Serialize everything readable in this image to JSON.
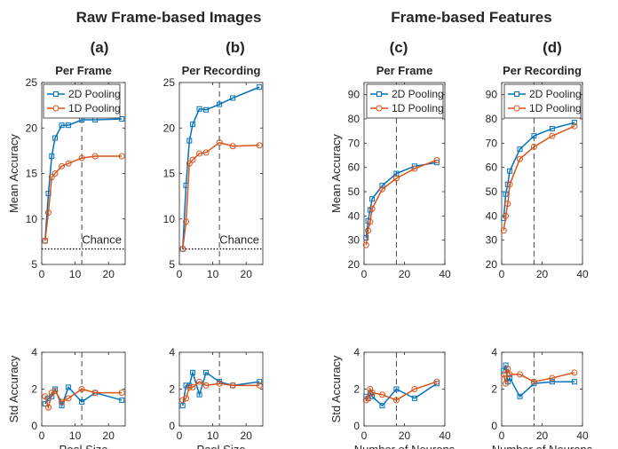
{
  "figure": {
    "group_titles": [
      "Raw Frame-based Images",
      "Frame-based Features"
    ],
    "panel_labels": [
      "(a)",
      "(b)",
      "(c)",
      "(d)"
    ]
  },
  "colors": {
    "series_2d": "#0072BD",
    "series_1d": "#D95319"
  },
  "chart_data": [
    {
      "type": "line",
      "panel": "(a)",
      "title": "Per Frame",
      "xlabel": "",
      "ylabel": "Mean Accuracy",
      "xlim": [
        0,
        25
      ],
      "ylim": [
        5,
        25
      ],
      "xticks": [
        0,
        10,
        20
      ],
      "yticks": [
        5,
        10,
        15,
        20,
        25
      ],
      "xtick_labels": [
        "0",
        "10",
        "20"
      ],
      "ytick_labels": [
        "5",
        "10",
        "15",
        "20",
        "25"
      ],
      "grid": false,
      "legend": "top-left",
      "vline": 12,
      "chance": 6.7,
      "chance_label": "Chance",
      "series": [
        {
          "name": "2D Pooling",
          "marker": "square",
          "x": [
            1,
            2,
            3,
            4,
            6,
            8,
            12,
            16,
            24
          ],
          "y": [
            7.6,
            12.8,
            16.9,
            18.9,
            20.3,
            20.3,
            20.9,
            20.9,
            21.0
          ]
        },
        {
          "name": "1D Pooling",
          "marker": "circle",
          "x": [
            1,
            2,
            3,
            4,
            6,
            8,
            12,
            16,
            24
          ],
          "y": [
            7.6,
            10.7,
            14.6,
            15.0,
            15.8,
            16.1,
            16.7,
            16.9,
            16.9
          ]
        }
      ]
    },
    {
      "type": "line",
      "panel": "(b)",
      "title": "Per Recording",
      "xlabel": "",
      "ylabel": "",
      "xlim": [
        0,
        25
      ],
      "ylim": [
        5,
        25
      ],
      "xticks": [
        0,
        10,
        20
      ],
      "yticks": [
        5,
        10,
        15,
        20,
        25
      ],
      "xtick_labels": [
        "0",
        "10",
        "20"
      ],
      "ytick_labels": [
        "5",
        "10",
        "15",
        "20",
        "25"
      ],
      "grid": false,
      "legend": "none",
      "vline": 12,
      "chance": 6.7,
      "chance_label": "Chance",
      "series": [
        {
          "name": "2D Pooling",
          "marker": "square",
          "x": [
            1,
            2,
            3,
            4,
            6,
            8,
            12,
            16,
            24
          ],
          "y": [
            6.7,
            13.7,
            18.6,
            20.4,
            22.1,
            22.0,
            22.6,
            23.3,
            24.5
          ]
        },
        {
          "name": "1D Pooling",
          "marker": "circle",
          "x": [
            1,
            2,
            3,
            4,
            6,
            8,
            12,
            16,
            24
          ],
          "y": [
            6.7,
            9.7,
            16.1,
            16.5,
            17.2,
            17.3,
            18.4,
            18.0,
            18.1
          ]
        }
      ]
    },
    {
      "type": "line",
      "panel": "(c)",
      "title": "Per Frame",
      "xlabel": "",
      "ylabel": "Mean Accuracy",
      "xlim": [
        0,
        40
      ],
      "ylim": [
        20,
        95
      ],
      "xticks": [
        0,
        20,
        40
      ],
      "yticks": [
        20,
        30,
        40,
        50,
        60,
        70,
        80,
        90
      ],
      "xtick_labels": [
        "0",
        "20",
        "40"
      ],
      "ytick_labels": [
        "20",
        "30",
        "40",
        "50",
        "60",
        "70",
        "80",
        "90"
      ],
      "grid": false,
      "legend": "top-right",
      "vline": 16,
      "series": [
        {
          "name": "2D Pooling",
          "marker": "square",
          "x": [
            1,
            2,
            3,
            4,
            9,
            16,
            25,
            36
          ],
          "y": [
            31,
            38,
            42.5,
            47,
            52.5,
            57.5,
            60.5,
            62
          ]
        },
        {
          "name": "1D Pooling",
          "marker": "circle",
          "x": [
            1,
            2,
            3,
            4,
            9,
            16,
            25,
            36
          ],
          "y": [
            28,
            34,
            37.5,
            43,
            51,
            55.5,
            59.5,
            63
          ]
        }
      ]
    },
    {
      "type": "line",
      "panel": "(d)",
      "title": "Per Recording",
      "xlabel": "",
      "ylabel": "",
      "xlim": [
        0,
        40
      ],
      "ylim": [
        20,
        95
      ],
      "xticks": [
        0,
        20,
        40
      ],
      "yticks": [
        20,
        30,
        40,
        50,
        60,
        70,
        80,
        90
      ],
      "xtick_labels": [
        "0",
        "20",
        "40"
      ],
      "ytick_labels": [
        "20",
        "30",
        "40",
        "50",
        "60",
        "70",
        "80",
        "90"
      ],
      "grid": false,
      "legend": "top-right",
      "vline": 16,
      "series": [
        {
          "name": "2D Pooling",
          "marker": "square",
          "x": [
            1,
            2,
            3,
            4,
            9,
            16,
            25,
            36
          ],
          "y": [
            39,
            49,
            53,
            58.5,
            67.5,
            73,
            76,
            78.5
          ]
        },
        {
          "name": "1D Pooling",
          "marker": "circle",
          "x": [
            1,
            2,
            3,
            4,
            9,
            16,
            25,
            36
          ],
          "y": [
            34,
            40,
            45,
            53,
            63.5,
            68.5,
            73,
            77
          ]
        }
      ]
    },
    {
      "type": "line",
      "panel": "(a)",
      "title": "",
      "xlabel": "Pool Size",
      "ylabel": "Std Accuracy",
      "xlim": [
        0,
        25
      ],
      "ylim": [
        0,
        4
      ],
      "xticks": [
        0,
        10,
        20
      ],
      "yticks": [
        0,
        2,
        4
      ],
      "xtick_labels": [
        "0",
        "10",
        "20"
      ],
      "ytick_labels": [
        "0",
        "2",
        "4"
      ],
      "grid": false,
      "legend": "none",
      "vline": 12,
      "series": [
        {
          "name": "2D Pooling",
          "marker": "square",
          "x": [
            1,
            2,
            3,
            4,
            6,
            8,
            12,
            16,
            24
          ],
          "y": [
            1.2,
            1.5,
            1.6,
            2.0,
            1.1,
            2.1,
            1.3,
            1.8,
            1.4
          ]
        },
        {
          "name": "1D Pooling",
          "marker": "circle",
          "x": [
            1,
            2,
            3,
            4,
            6,
            8,
            12,
            16,
            24
          ],
          "y": [
            1.6,
            1.0,
            1.8,
            1.9,
            1.3,
            1.5,
            2.0,
            1.8,
            1.8
          ]
        }
      ]
    },
    {
      "type": "line",
      "panel": "(b)",
      "title": "",
      "xlabel": "Pool Size",
      "ylabel": "",
      "xlim": [
        0,
        25
      ],
      "ylim": [
        0,
        4
      ],
      "xticks": [
        0,
        10,
        20
      ],
      "yticks": [
        0,
        2,
        4
      ],
      "xtick_labels": [
        "0",
        "10",
        "20"
      ],
      "ytick_labels": [
        "0",
        "2",
        "4"
      ],
      "grid": false,
      "legend": "none",
      "vline": 12,
      "series": [
        {
          "name": "2D Pooling",
          "marker": "square",
          "x": [
            1,
            2,
            3,
            4,
            6,
            8,
            12,
            16,
            24
          ],
          "y": [
            1.1,
            2.2,
            2.2,
            2.9,
            1.7,
            2.9,
            2.4,
            2.2,
            2.4
          ]
        },
        {
          "name": "1D Pooling",
          "marker": "circle",
          "x": [
            1,
            2,
            3,
            4,
            6,
            8,
            12,
            16,
            24
          ],
          "y": [
            1.4,
            1.5,
            2.1,
            2.1,
            2.4,
            2.2,
            2.3,
            2.2,
            2.2
          ]
        }
      ]
    },
    {
      "type": "line",
      "panel": "(c)",
      "title": "",
      "xlabel": "Number of Neurons",
      "ylabel": "Std Accuracy",
      "xlim": [
        0,
        40
      ],
      "ylim": [
        0,
        4
      ],
      "xticks": [
        0,
        20,
        40
      ],
      "yticks": [
        0,
        2,
        4
      ],
      "xtick_labels": [
        "0",
        "20",
        "40"
      ],
      "ytick_labels": [
        "0",
        "2",
        "4"
      ],
      "grid": false,
      "legend": "none",
      "vline": 16,
      "series": [
        {
          "name": "2D Pooling",
          "marker": "square",
          "x": [
            1,
            2,
            3,
            4,
            9,
            16,
            25,
            36
          ],
          "y": [
            1.6,
            1.5,
            1.8,
            1.6,
            1.1,
            2.0,
            1.5,
            2.3
          ]
        },
        {
          "name": "1D Pooling",
          "marker": "circle",
          "x": [
            1,
            2,
            3,
            4,
            9,
            16,
            25,
            36
          ],
          "y": [
            1.4,
            1.5,
            2.0,
            1.8,
            1.7,
            1.4,
            2.0,
            2.4
          ]
        }
      ]
    },
    {
      "type": "line",
      "panel": "(d)",
      "title": "",
      "xlabel": "Number of Neurons",
      "ylabel": "",
      "xlim": [
        0,
        40
      ],
      "ylim": [
        0,
        4
      ],
      "xticks": [
        0,
        20,
        40
      ],
      "yticks": [
        0,
        2,
        4
      ],
      "xtick_labels": [
        "0",
        "20",
        "40"
      ],
      "ytick_labels": [
        "0",
        "2",
        "4"
      ],
      "grid": false,
      "legend": "none",
      "vline": 16,
      "series": [
        {
          "name": "2D Pooling",
          "marker": "square",
          "x": [
            1,
            2,
            3,
            4,
            9,
            16,
            25,
            36
          ],
          "y": [
            3.0,
            3.3,
            2.4,
            2.6,
            1.6,
            2.3,
            2.4,
            2.4
          ]
        },
        {
          "name": "1D Pooling",
          "marker": "circle",
          "x": [
            1,
            2,
            3,
            4,
            9,
            16,
            25,
            36
          ],
          "y": [
            2.8,
            2.3,
            3.1,
            2.8,
            2.8,
            2.4,
            2.6,
            2.9
          ]
        }
      ]
    }
  ]
}
